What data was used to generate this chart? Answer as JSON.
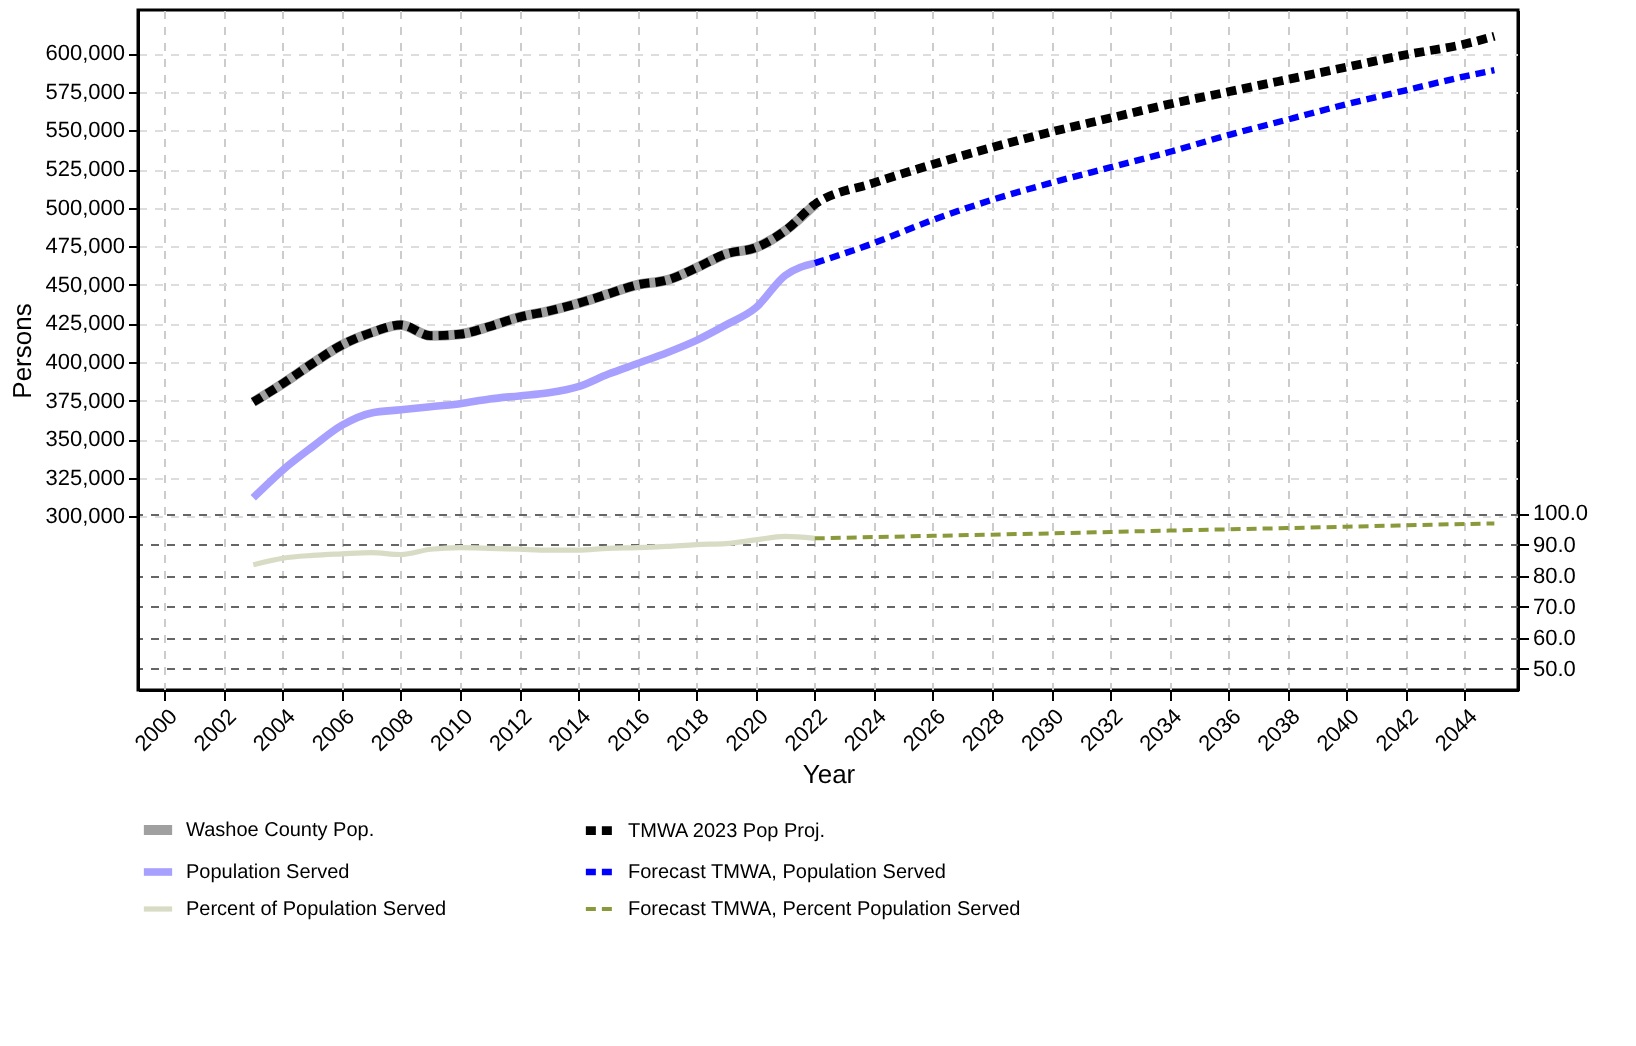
{
  "chart_data": {
    "type": "line",
    "xlabel": "Year",
    "ylabel": "Persons",
    "xlim": [
      1999.1,
      2045.8
    ],
    "xticks": [
      2000,
      2002,
      2004,
      2006,
      2008,
      2010,
      2012,
      2014,
      2016,
      2018,
      2020,
      2022,
      2024,
      2026,
      2028,
      2030,
      2032,
      2034,
      2036,
      2038,
      2040,
      2042,
      2044
    ],
    "ylim": [
      187500,
      628000
    ],
    "yticks": [
      {
        "value": 300000,
        "label": "300,000"
      },
      {
        "value": 325000,
        "label": "325,000"
      },
      {
        "value": 350000,
        "label": "350,000"
      },
      {
        "value": 375000,
        "label": "375,000"
      },
      {
        "value": 400000,
        "label": "400,000"
      },
      {
        "value": 425000,
        "label": "425,000"
      },
      {
        "value": 450000,
        "label": "450,000"
      },
      {
        "value": 475000,
        "label": "475,000"
      },
      {
        "value": 500000,
        "label": "500,000"
      },
      {
        "value": 525000,
        "label": "525,000"
      },
      {
        "value": 550000,
        "label": "550,000"
      },
      {
        "value": 575000,
        "label": "575,000"
      },
      {
        "value": 600000,
        "label": "600,000"
      }
    ],
    "y2lim": [
      43.2,
      262
    ],
    "y2ticks": [
      {
        "value": 50,
        "label": "50.0"
      },
      {
        "value": 60,
        "label": "60.0"
      },
      {
        "value": 70,
        "label": "70.0"
      },
      {
        "value": 80,
        "label": "80.0"
      },
      {
        "value": 90,
        "label": "90.0"
      },
      {
        "value": 100,
        "label": "100.0"
      }
    ],
    "grid": true,
    "legend": "bottom",
    "series": [
      {
        "name": "Washoe County Pop.",
        "color": "#a0a0a0",
        "line_style": "solid",
        "x": [
          2003,
          2004,
          2005,
          2006,
          2007,
          2008,
          2009,
          2010,
          2011,
          2012,
          2013,
          2014,
          2015,
          2016,
          2017,
          2018,
          2019,
          2020,
          2021,
          2022
        ],
        "values": [
          374000,
          386000,
          399000,
          411000,
          419000,
          424000,
          417000,
          418000,
          423000,
          429000,
          433000,
          438000,
          444000,
          450000,
          453000,
          461000,
          470000,
          474000,
          485000,
          502000
        ]
      },
      {
        "name": "TMWA 2023 Pop Proj.",
        "color": "#000000",
        "line_style": "dashed",
        "x": [
          2003,
          2004,
          2005,
          2006,
          2007,
          2008,
          2009,
          2010,
          2011,
          2012,
          2013,
          2014,
          2015,
          2016,
          2017,
          2018,
          2019,
          2020,
          2021,
          2022,
          2024,
          2026,
          2028,
          2030,
          2032,
          2034,
          2036,
          2038,
          2040,
          2042,
          2044,
          2045
        ],
        "values": [
          374000,
          386000,
          399000,
          411000,
          419000,
          424000,
          417000,
          418000,
          423000,
          429000,
          433000,
          438000,
          444000,
          450000,
          453000,
          461000,
          470000,
          474000,
          485000,
          502000,
          516000,
          528000,
          539000,
          549000,
          558000,
          567000,
          575000,
          583000,
          591000,
          599000,
          606000,
          611000
        ]
      },
      {
        "name": "Population Served",
        "color": "#a8a0ff",
        "line_style": "solid",
        "x": [
          2003,
          2004,
          2005,
          2006,
          2007,
          2008,
          2009,
          2010,
          2011,
          2012,
          2013,
          2014,
          2015,
          2016,
          2017,
          2018,
          2019,
          2020,
          2021,
          2022
        ],
        "values": [
          312000,
          330000,
          345000,
          359000,
          367000,
          369000,
          371000,
          373000,
          376000,
          378000,
          380000,
          384000,
          392000,
          399000,
          406000,
          414000,
          424000,
          435000,
          456000,
          464000
        ]
      },
      {
        "name": "Forecast TMWA, Population Served",
        "color": "#0000ff",
        "line_style": "dashed",
        "x": [
          2022,
          2024,
          2026,
          2028,
          2030,
          2032,
          2034,
          2036,
          2038,
          2040,
          2042,
          2044,
          2045
        ],
        "values": [
          464000,
          477000,
          492000,
          505000,
          516000,
          526000,
          536000,
          547000,
          557000,
          567000,
          576000,
          585000,
          589000
        ]
      },
      {
        "name": "Percent of Population Served",
        "color": "#d8dcc4",
        "line_style": "solid",
        "axis": "y2",
        "x": [
          2003,
          2004,
          2005,
          2006,
          2007,
          2008,
          2009,
          2010,
          2011,
          2012,
          2013,
          2014,
          2015,
          2016,
          2017,
          2018,
          2019,
          2020,
          2021,
          2022
        ],
        "values": [
          83.5,
          85.6,
          86.5,
          87,
          87.4,
          86.8,
          88.5,
          89,
          88.8,
          88.5,
          88.2,
          88.2,
          88.8,
          89,
          89.4,
          90,
          90.3,
          91.5,
          92.6,
          92
        ]
      },
      {
        "name": "Forecast TMWA, Percent Population Served",
        "color": "#8a9a3a",
        "line_style": "dashed",
        "axis": "y2",
        "x": [
          2022,
          2026,
          2030,
          2034,
          2038,
          2042,
          2045
        ],
        "values": [
          92,
          92.8,
          93.6,
          94.5,
          95.3,
          96.2,
          96.8
        ]
      }
    ]
  }
}
